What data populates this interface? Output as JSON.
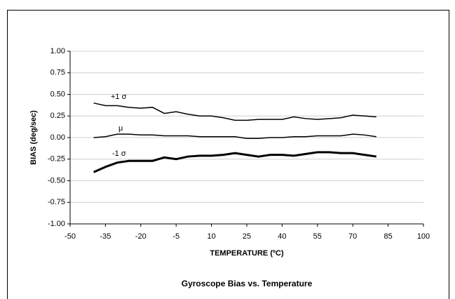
{
  "chart_data": {
    "type": "line",
    "title": "Gyroscope Bias vs. Temperature",
    "xlabel": "TEMPERATURE (ºC)",
    "ylabel": "BIAS (deg/sec)",
    "annotations": [
      "+1 σ",
      "μ",
      "-1 σ"
    ],
    "x": [
      -40,
      -35,
      -30,
      -25,
      -20,
      -15,
      -10,
      -5,
      0,
      5,
      10,
      15,
      20,
      25,
      30,
      35,
      40,
      45,
      50,
      55,
      60,
      65,
      70,
      75,
      80
    ],
    "series": [
      {
        "name": "+1 σ",
        "color": "#000000",
        "line_width": 1.5,
        "values": [
          0.4,
          0.37,
          0.37,
          0.35,
          0.34,
          0.35,
          0.28,
          0.3,
          0.27,
          0.25,
          0.25,
          0.23,
          0.2,
          0.2,
          0.21,
          0.21,
          0.21,
          0.24,
          0.22,
          0.21,
          0.22,
          0.23,
          0.26,
          0.25,
          0.24
        ]
      },
      {
        "name": "μ",
        "color": "#000000",
        "line_width": 1.5,
        "values": [
          0.0,
          0.01,
          0.04,
          0.04,
          0.03,
          0.03,
          0.02,
          0.02,
          0.02,
          0.01,
          0.01,
          0.01,
          0.01,
          -0.01,
          -0.01,
          0.0,
          0.0,
          0.01,
          0.01,
          0.02,
          0.02,
          0.02,
          0.04,
          0.03,
          0.01
        ]
      },
      {
        "name": "-1 σ",
        "color": "#000000",
        "line_width": 3,
        "values": [
          -0.4,
          -0.34,
          -0.29,
          -0.27,
          -0.27,
          -0.27,
          -0.23,
          -0.25,
          -0.22,
          -0.21,
          -0.21,
          -0.2,
          -0.18,
          -0.2,
          -0.22,
          -0.2,
          -0.2,
          -0.21,
          -0.19,
          -0.17,
          -0.17,
          -0.18,
          -0.18,
          -0.2,
          -0.22
        ]
      }
    ],
    "xlim": [
      -50,
      100
    ],
    "xticks": [
      -50,
      -35,
      -20,
      -5,
      10,
      25,
      40,
      55,
      70,
      85,
      100
    ],
    "ylim": [
      -1,
      1
    ],
    "yticks": [
      {
        "value": -1,
        "label": "-1.00"
      },
      {
        "value": -0.75,
        "label": "-0.75"
      },
      {
        "value": -0.5,
        "label": "-0.50"
      },
      {
        "value": -0.25,
        "label": "-0.25"
      },
      {
        "value": 0,
        "label": "0.00"
      },
      {
        "value": 0.25,
        "label": "0.25"
      },
      {
        "value": 0.5,
        "label": "0.50"
      },
      {
        "value": 0.75,
        "label": "0.75"
      },
      {
        "value": 1,
        "label": "1.00"
      }
    ],
    "grid": true,
    "grid_color": "#d0d0d0"
  }
}
